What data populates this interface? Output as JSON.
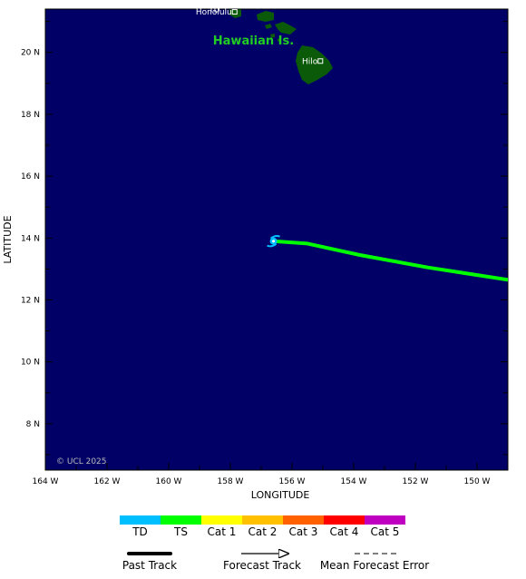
{
  "map": {
    "background_color": "#000066",
    "land_color": "#0a5a0a",
    "lon_range": [
      -164,
      -149
    ],
    "lat_range": [
      6.5,
      21.4
    ],
    "x_axis": {
      "title": "LONGITUDE",
      "ticks": [
        {
          "value": -164,
          "label": "164 W"
        },
        {
          "value": -162,
          "label": "162 W"
        },
        {
          "value": -160,
          "label": "160 W"
        },
        {
          "value": -158,
          "label": "158 W"
        },
        {
          "value": -156,
          "label": "156 W"
        },
        {
          "value": -154,
          "label": "154 W"
        },
        {
          "value": -152,
          "label": "152 W"
        },
        {
          "value": -150,
          "label": "150 W"
        }
      ]
    },
    "y_axis": {
      "title": "LATITUDE",
      "ticks": [
        {
          "value": 8,
          "label": "8 N"
        },
        {
          "value": 10,
          "label": "10 N"
        },
        {
          "value": 12,
          "label": "12 N"
        },
        {
          "value": 14,
          "label": "14 N"
        },
        {
          "value": 16,
          "label": "16 N"
        },
        {
          "value": 18,
          "label": "18 N"
        },
        {
          "value": 20,
          "label": "20 N"
        }
      ]
    },
    "region_label": {
      "text": "Hawaiian Is.",
      "lon": -157.25,
      "lat": 20.25,
      "color": "#22cc22"
    },
    "cities": [
      {
        "name": "Honolulu",
        "lon": -157.86,
        "lat": 21.31
      },
      {
        "name": "Hilo",
        "lon": -155.08,
        "lat": 19.72
      }
    ],
    "partial_label": {
      "text": "TD",
      "lon": -158.7,
      "lat": 21.38
    },
    "copyright": "© UCL 2025"
  },
  "storm": {
    "current_position": {
      "lon": -156.6,
      "lat": 13.9,
      "category": "TD",
      "color": "#00bfff"
    },
    "past_track": [
      {
        "lon": -156.6,
        "lat": 13.9,
        "category": "TS"
      },
      {
        "lon": -155.5,
        "lat": 13.82,
        "category": "TS"
      },
      {
        "lon": -153.8,
        "lat": 13.45,
        "category": "TS"
      },
      {
        "lon": -151.6,
        "lat": 13.05,
        "category": "TS"
      },
      {
        "lon": -149,
        "lat": 12.65,
        "category": "TS"
      }
    ],
    "track_color": "#00ff00"
  },
  "legend": {
    "categories": [
      {
        "label": "TD",
        "color": "#00bfff"
      },
      {
        "label": "TS",
        "color": "#00ff00"
      },
      {
        "label": "Cat 1",
        "color": "#ffff00"
      },
      {
        "label": "Cat 2",
        "color": "#ffc000"
      },
      {
        "label": "Cat 3",
        "color": "#ff6000"
      },
      {
        "label": "Cat 4",
        "color": "#ff0000"
      },
      {
        "label": "Cat 5",
        "color": "#c000c0"
      }
    ],
    "track_types": {
      "past": "Past Track",
      "forecast": "Forecast Track",
      "error": "Mean Forecast Error"
    }
  }
}
